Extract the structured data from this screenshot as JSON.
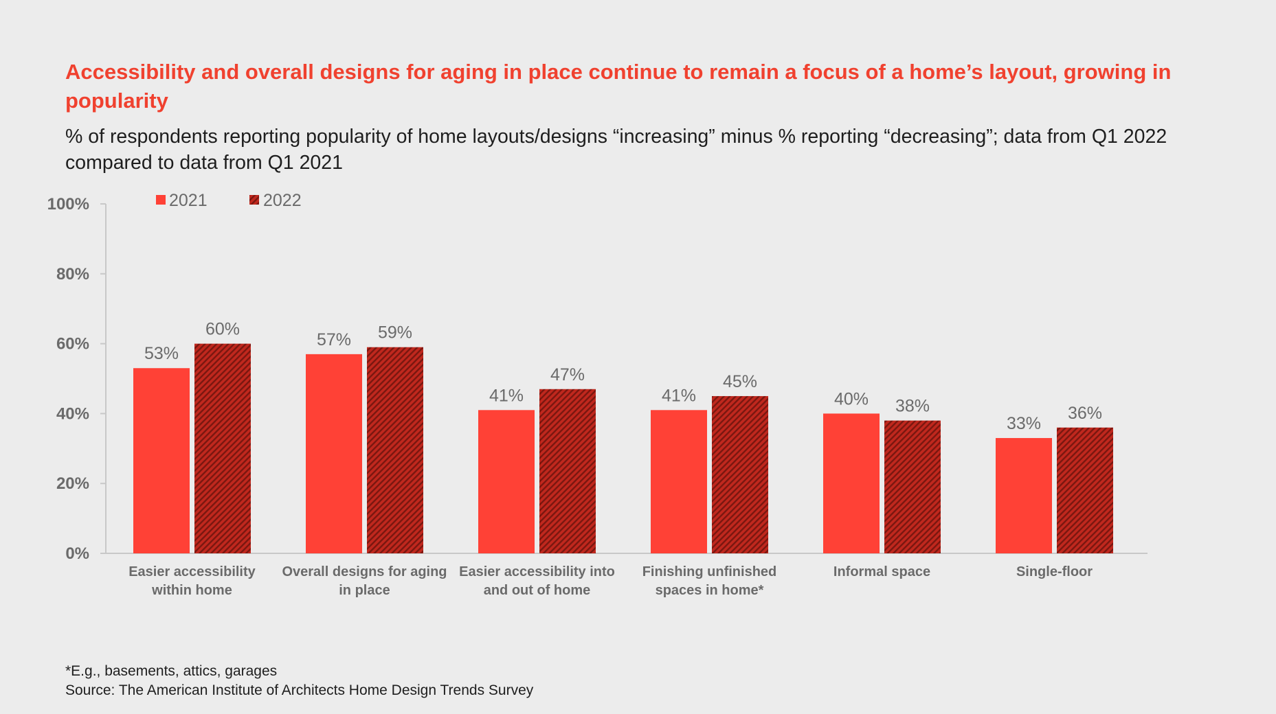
{
  "header": {
    "title": "Accessibility and overall designs for aging in place continue to remain a focus of a home’s layout, growing in popularity",
    "subtitle": "% of respondents reporting popularity of home layouts/designs “increasing” minus % reporting “decreasing”; data from Q1 2022 compared to data from Q1 2021"
  },
  "footer": {
    "note": "*E.g., basements, attics, garages",
    "source": "Source: The American Institute of Architects Home Design Trends Survey"
  },
  "colors": {
    "accent": "#f0412f",
    "bar_2021": "#ff4136",
    "bar_2022_base": "#c0281e",
    "bar_2022_stripe": "#7a1710",
    "axis": "#c8c8c8",
    "text_muted": "#6a6a6a"
  },
  "chart_data": {
    "type": "bar",
    "categories": [
      [
        "Easier accessibility",
        "within home"
      ],
      [
        "Overall designs for aging",
        "in place"
      ],
      [
        "Easier accessibility into",
        "and out of home"
      ],
      [
        "Finishing unfinished",
        "spaces in home*"
      ],
      [
        "Informal space"
      ],
      [
        "Single-floor"
      ]
    ],
    "series": [
      {
        "name": "2021",
        "values": [
          53,
          57,
          41,
          41,
          40,
          33
        ],
        "labels": [
          "53%",
          "57%",
          "41%",
          "41%",
          "40%",
          "33%"
        ],
        "pattern": "solid"
      },
      {
        "name": "2022",
        "values": [
          60,
          59,
          47,
          45,
          38,
          36
        ],
        "labels": [
          "60%",
          "59%",
          "47%",
          "45%",
          "38%",
          "36%"
        ],
        "pattern": "hatched"
      }
    ],
    "ylim": [
      0,
      100
    ],
    "yticks": [
      0,
      20,
      40,
      60,
      80,
      100
    ],
    "ytick_labels": [
      "0%",
      "20%",
      "40%",
      "60%",
      "80%",
      "100%"
    ],
    "grid": false,
    "legend": "top-left"
  }
}
